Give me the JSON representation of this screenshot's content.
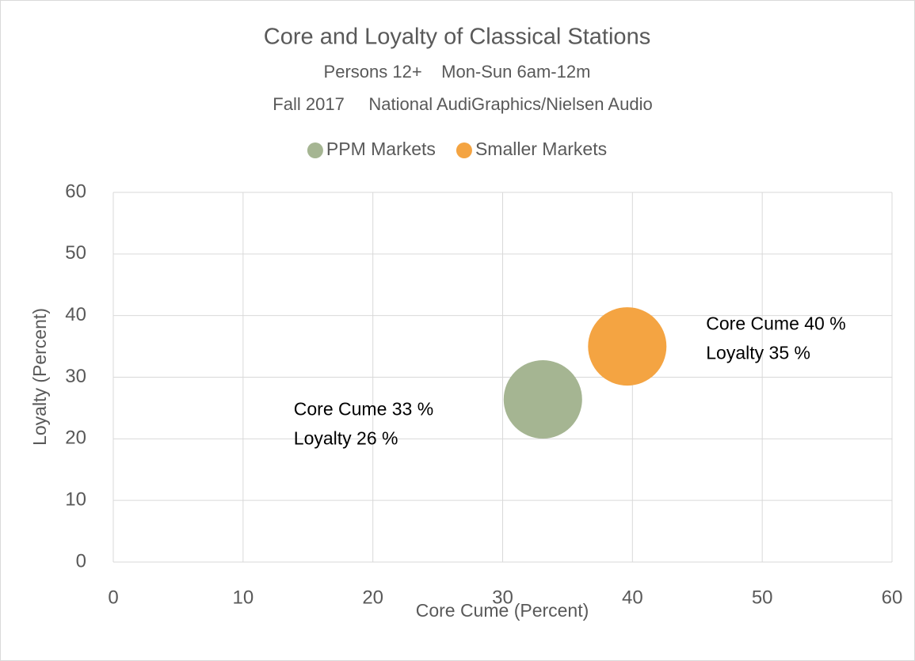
{
  "chart_data": {
    "type": "bubble",
    "title": "Core and Loyalty of Classical Stations",
    "subtitle": [
      "Persons 12+    Mon-Sun 6am-12m",
      "Fall 2017     National AudiGraphics/Nielsen Audio"
    ],
    "xlabel": "Core Cume (Percent)",
    "ylabel": "Loyalty (Percent)",
    "xlim": [
      0,
      60
    ],
    "xticks": [
      0,
      10,
      20,
      30,
      40,
      50,
      60
    ],
    "ylim": [
      0,
      60
    ],
    "yticks": [
      0,
      10,
      20,
      30,
      40,
      50,
      60
    ],
    "grid": true,
    "legend": "top",
    "series": [
      {
        "name": "PPM Markets",
        "color": "#a5b592",
        "x": [
          33.1
        ],
        "values": [
          26.4
        ],
        "sizes": [
          1
        ],
        "labels": [
          "Core Cume 33 %",
          "Loyalty 26 %"
        ],
        "label_position": "left"
      },
      {
        "name": "Smaller Markets",
        "color": "#f4a442",
        "x": [
          39.6
        ],
        "values": [
          35.0
        ],
        "sizes": [
          1
        ],
        "labels": [
          "Core Cume 40 %",
          "Loyalty 35 %"
        ],
        "label_position": "right"
      }
    ]
  }
}
